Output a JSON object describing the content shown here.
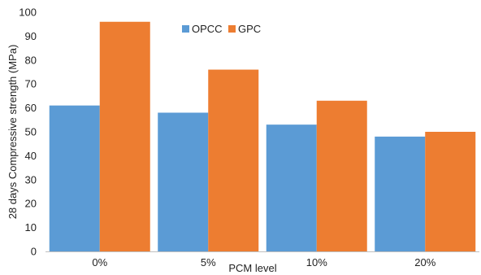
{
  "chart_data": {
    "type": "bar",
    "categories": [
      "0%",
      "5%",
      "10%",
      "20%"
    ],
    "series": [
      {
        "name": "OPCC",
        "values": [
          61,
          58,
          53,
          48
        ],
        "color": "#5b9bd5"
      },
      {
        "name": "GPC",
        "values": [
          96,
          76,
          63,
          50
        ],
        "color": "#ed7d31"
      }
    ],
    "title": "",
    "xlabel": "PCM level",
    "ylabel": "28 days Compressive strength  (MPa)",
    "ylim": [
      0,
      100
    ],
    "yticks": [
      0,
      10,
      20,
      30,
      40,
      50,
      60,
      70,
      80,
      90,
      100
    ],
    "grid": false,
    "legend": "top-center"
  }
}
